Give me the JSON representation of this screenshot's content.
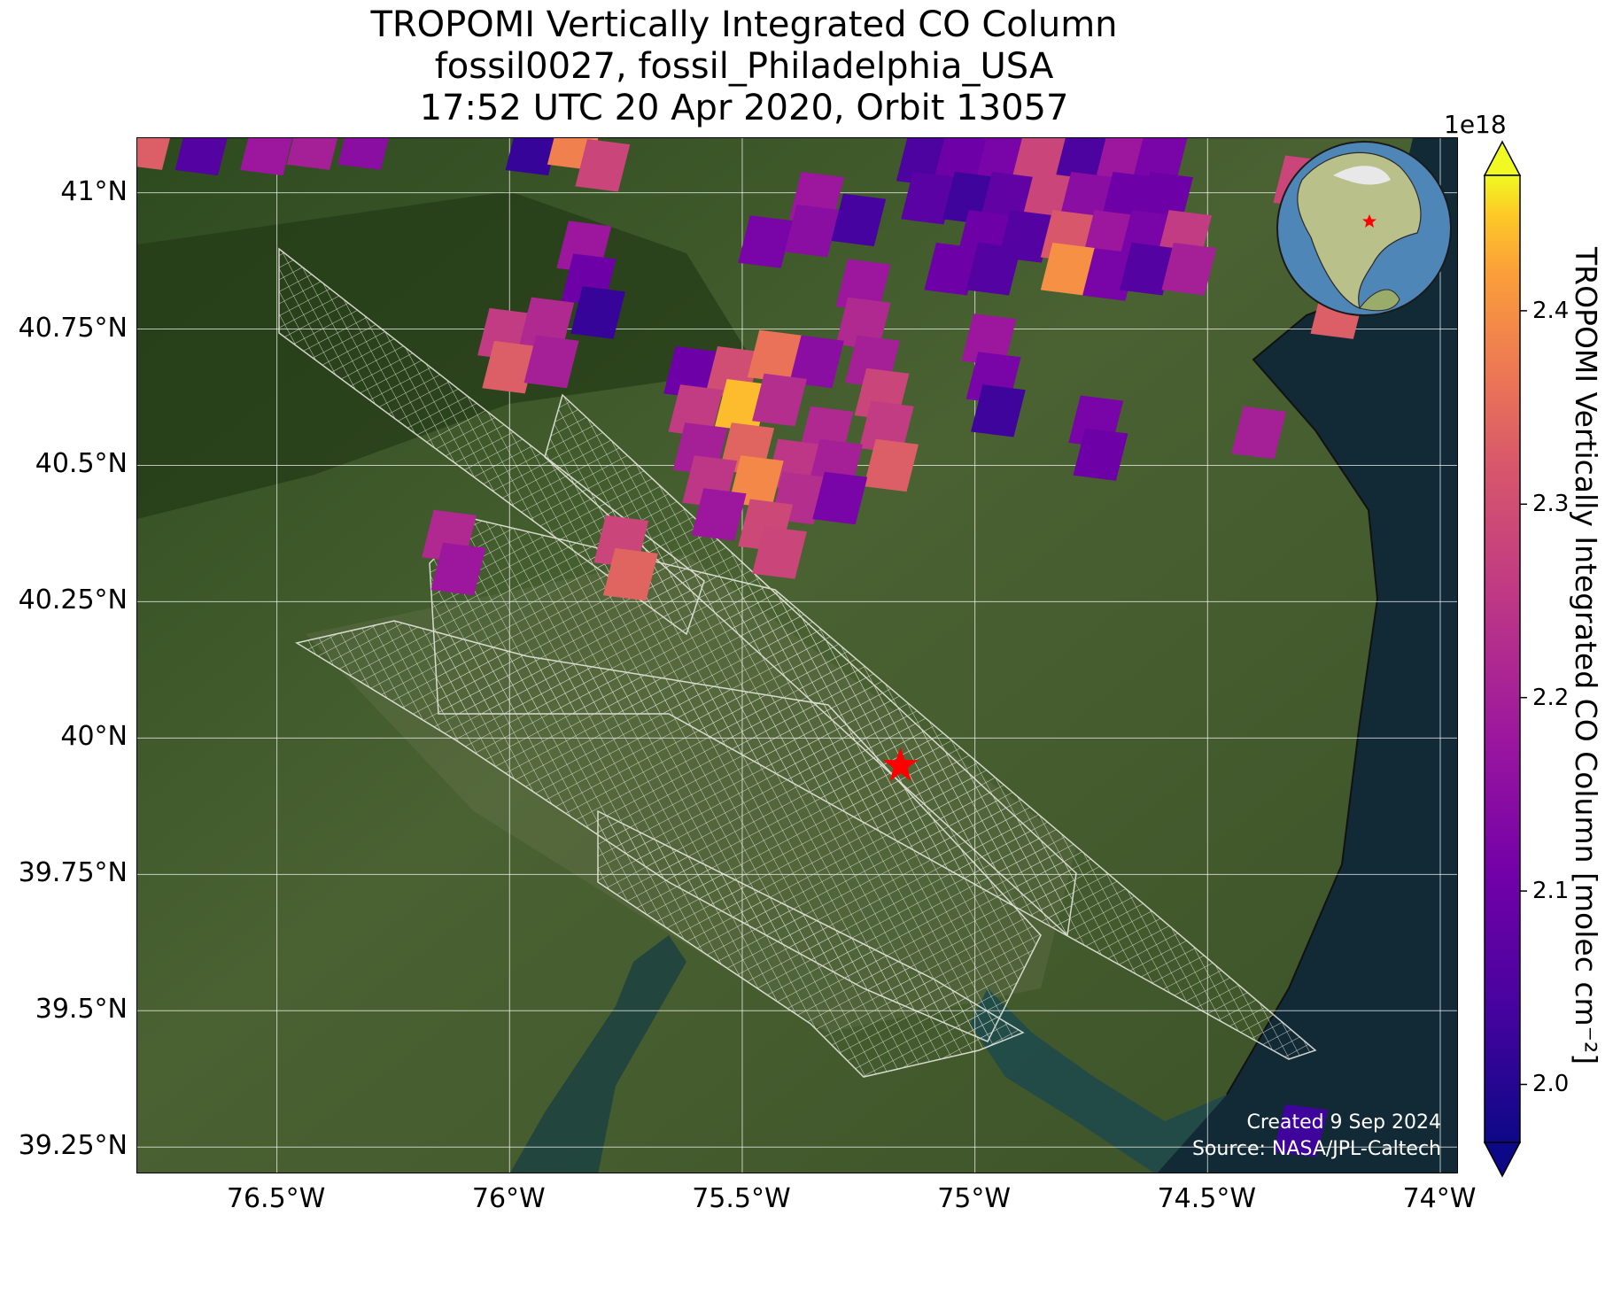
{
  "title": {
    "line1": "TROPOMI Vertically Integrated CO Column",
    "line2": "fossil0027, fossil_Philadelphia_USA",
    "line3": "17:52 UTC 20 Apr 2020, Orbit 13057"
  },
  "map": {
    "lat_ticks": [
      "41°N",
      "40.75°N",
      "40.5°N",
      "40.25°N",
      "40°N",
      "39.75°N",
      "39.5°N",
      "39.25°N"
    ],
    "lat_values": [
      41.0,
      40.75,
      40.5,
      40.25,
      40.0,
      39.75,
      39.5,
      39.25
    ],
    "lon_ticks": [
      "76.5°W",
      "76°W",
      "75.5°W",
      "75°W",
      "74.5°W",
      "74°W"
    ],
    "lon_values": [
      -76.5,
      -76.0,
      -75.5,
      -75.0,
      -74.5,
      -74.0
    ],
    "extent": {
      "lon_min": -76.8,
      "lon_max": -73.96,
      "lat_min": 39.2,
      "lat_max": 41.1
    },
    "target": {
      "name": "Philadelphia",
      "lat": 39.95,
      "lon": -75.16,
      "marker_color": "#ff0000"
    },
    "credits": {
      "created": "Created 9 Sep 2024",
      "source": "Source: NASA/JPL-Caltech"
    },
    "land_color": "#3f5a2a",
    "water_color": "#163040",
    "grid_color": "#ffffff"
  },
  "colorbar": {
    "label": "TROPOMI Vertically Integrated CO Column [molec cm⁻²]",
    "multiplier": "1e18",
    "colormap": "plasma",
    "vmin": 1.97,
    "vmax": 2.47,
    "ticks": [
      "2.0",
      "2.1",
      "2.2",
      "2.3",
      "2.4"
    ],
    "tick_values": [
      2.0,
      2.1,
      2.2,
      2.3,
      2.4
    ],
    "extend": "both"
  },
  "chart_data": {
    "type": "heatmap",
    "value_units": "1e18 molec cm⁻²",
    "pixels": [
      {
        "lon": -76.78,
        "lat": 41.09,
        "value": 2.33
      },
      {
        "lon": -76.66,
        "lat": 41.08,
        "value": 2.06
      },
      {
        "lon": -76.52,
        "lat": 41.08,
        "value": 2.18
      },
      {
        "lon": -76.42,
        "lat": 41.09,
        "value": 2.2
      },
      {
        "lon": -76.31,
        "lat": 41.09,
        "value": 2.15
      },
      {
        "lon": -75.95,
        "lat": 41.08,
        "value": 2.02
      },
      {
        "lon": -75.86,
        "lat": 41.09,
        "value": 2.38
      },
      {
        "lon": -75.8,
        "lat": 41.05,
        "value": 2.28
      },
      {
        "lon": -75.84,
        "lat": 40.9,
        "value": 2.18
      },
      {
        "lon": -75.83,
        "lat": 40.84,
        "value": 2.1
      },
      {
        "lon": -75.81,
        "lat": 40.78,
        "value": 2.02
      },
      {
        "lon": -75.45,
        "lat": 40.91,
        "value": 2.12
      },
      {
        "lon": -75.34,
        "lat": 40.99,
        "value": 2.18
      },
      {
        "lon": -75.35,
        "lat": 40.93,
        "value": 2.15
      },
      {
        "lon": -75.25,
        "lat": 40.95,
        "value": 2.04
      },
      {
        "lon": -75.11,
        "lat": 41.06,
        "value": 2.05
      },
      {
        "lon": -75.03,
        "lat": 41.06,
        "value": 2.1
      },
      {
        "lon": -74.94,
        "lat": 41.06,
        "value": 2.12
      },
      {
        "lon": -74.86,
        "lat": 41.07,
        "value": 2.28
      },
      {
        "lon": -74.77,
        "lat": 41.06,
        "value": 2.05
      },
      {
        "lon": -74.68,
        "lat": 41.07,
        "value": 2.18
      },
      {
        "lon": -74.6,
        "lat": 41.07,
        "value": 2.12
      },
      {
        "lon": -75.1,
        "lat": 40.99,
        "value": 2.07
      },
      {
        "lon": -75.01,
        "lat": 40.99,
        "value": 2.03
      },
      {
        "lon": -74.93,
        "lat": 40.99,
        "value": 2.08
      },
      {
        "lon": -74.84,
        "lat": 40.99,
        "value": 2.28
      },
      {
        "lon": -74.76,
        "lat": 40.99,
        "value": 2.15
      },
      {
        "lon": -74.67,
        "lat": 40.99,
        "value": 2.1
      },
      {
        "lon": -74.59,
        "lat": 40.99,
        "value": 2.1
      },
      {
        "lon": -74.98,
        "lat": 40.92,
        "value": 2.1
      },
      {
        "lon": -74.89,
        "lat": 40.92,
        "value": 2.06
      },
      {
        "lon": -74.8,
        "lat": 40.92,
        "value": 2.32
      },
      {
        "lon": -74.71,
        "lat": 40.92,
        "value": 2.18
      },
      {
        "lon": -74.63,
        "lat": 40.92,
        "value": 2.12
      },
      {
        "lon": -74.55,
        "lat": 40.92,
        "value": 2.26
      },
      {
        "lon": -75.05,
        "lat": 40.86,
        "value": 2.1
      },
      {
        "lon": -74.96,
        "lat": 40.86,
        "value": 2.06
      },
      {
        "lon": -74.8,
        "lat": 40.86,
        "value": 2.4
      },
      {
        "lon": -74.71,
        "lat": 40.85,
        "value": 2.12
      },
      {
        "lon": -74.63,
        "lat": 40.86,
        "value": 2.06
      },
      {
        "lon": -74.54,
        "lat": 40.86,
        "value": 2.2
      },
      {
        "lon": -74.3,
        "lat": 41.02,
        "value": 2.28
      },
      {
        "lon": -74.28,
        "lat": 40.96,
        "value": 2.08
      },
      {
        "lon": -74.22,
        "lat": 40.78,
        "value": 2.33
      },
      {
        "lon": -76.01,
        "lat": 40.74,
        "value": 2.26
      },
      {
        "lon": -75.92,
        "lat": 40.76,
        "value": 2.22
      },
      {
        "lon": -76.0,
        "lat": 40.68,
        "value": 2.33
      },
      {
        "lon": -75.91,
        "lat": 40.69,
        "value": 2.2
      },
      {
        "lon": -75.24,
        "lat": 40.83,
        "value": 2.18
      },
      {
        "lon": -75.24,
        "lat": 40.76,
        "value": 2.22
      },
      {
        "lon": -75.22,
        "lat": 40.69,
        "value": 2.2
      },
      {
        "lon": -75.2,
        "lat": 40.63,
        "value": 2.28
      },
      {
        "lon": -75.19,
        "lat": 40.57,
        "value": 2.26
      },
      {
        "lon": -75.18,
        "lat": 40.5,
        "value": 2.33
      },
      {
        "lon": -74.97,
        "lat": 40.73,
        "value": 2.18
      },
      {
        "lon": -74.96,
        "lat": 40.66,
        "value": 2.12
      },
      {
        "lon": -74.95,
        "lat": 40.6,
        "value": 2.03
      },
      {
        "lon": -74.74,
        "lat": 40.58,
        "value": 2.12
      },
      {
        "lon": -74.73,
        "lat": 40.52,
        "value": 2.1
      },
      {
        "lon": -74.39,
        "lat": 40.56,
        "value": 2.2
      },
      {
        "lon": -75.61,
        "lat": 40.67,
        "value": 2.1
      },
      {
        "lon": -75.52,
        "lat": 40.67,
        "value": 2.3
      },
      {
        "lon": -75.43,
        "lat": 40.7,
        "value": 2.36
      },
      {
        "lon": -75.34,
        "lat": 40.69,
        "value": 2.15
      },
      {
        "lon": -75.6,
        "lat": 40.6,
        "value": 2.26
      },
      {
        "lon": -75.5,
        "lat": 40.61,
        "value": 2.44
      },
      {
        "lon": -75.42,
        "lat": 40.62,
        "value": 2.23
      },
      {
        "lon": -75.32,
        "lat": 40.56,
        "value": 2.22
      },
      {
        "lon": -75.59,
        "lat": 40.53,
        "value": 2.2
      },
      {
        "lon": -75.49,
        "lat": 40.53,
        "value": 2.34
      },
      {
        "lon": -75.39,
        "lat": 40.5,
        "value": 2.25
      },
      {
        "lon": -75.3,
        "lat": 40.5,
        "value": 2.2
      },
      {
        "lon": -75.57,
        "lat": 40.47,
        "value": 2.25
      },
      {
        "lon": -75.47,
        "lat": 40.47,
        "value": 2.39
      },
      {
        "lon": -75.38,
        "lat": 40.44,
        "value": 2.23
      },
      {
        "lon": -75.29,
        "lat": 40.44,
        "value": 2.12
      },
      {
        "lon": -75.55,
        "lat": 40.41,
        "value": 2.18
      },
      {
        "lon": -75.45,
        "lat": 40.39,
        "value": 2.29
      },
      {
        "lon": -75.42,
        "lat": 40.34,
        "value": 2.28
      },
      {
        "lon": -76.13,
        "lat": 40.37,
        "value": 2.22
      },
      {
        "lon": -76.11,
        "lat": 40.31,
        "value": 2.18
      },
      {
        "lon": -75.76,
        "lat": 40.36,
        "value": 2.28
      },
      {
        "lon": -75.74,
        "lat": 40.3,
        "value": 2.34
      },
      {
        "lon": -74.3,
        "lat": 39.28,
        "value": 2.03
      }
    ]
  }
}
